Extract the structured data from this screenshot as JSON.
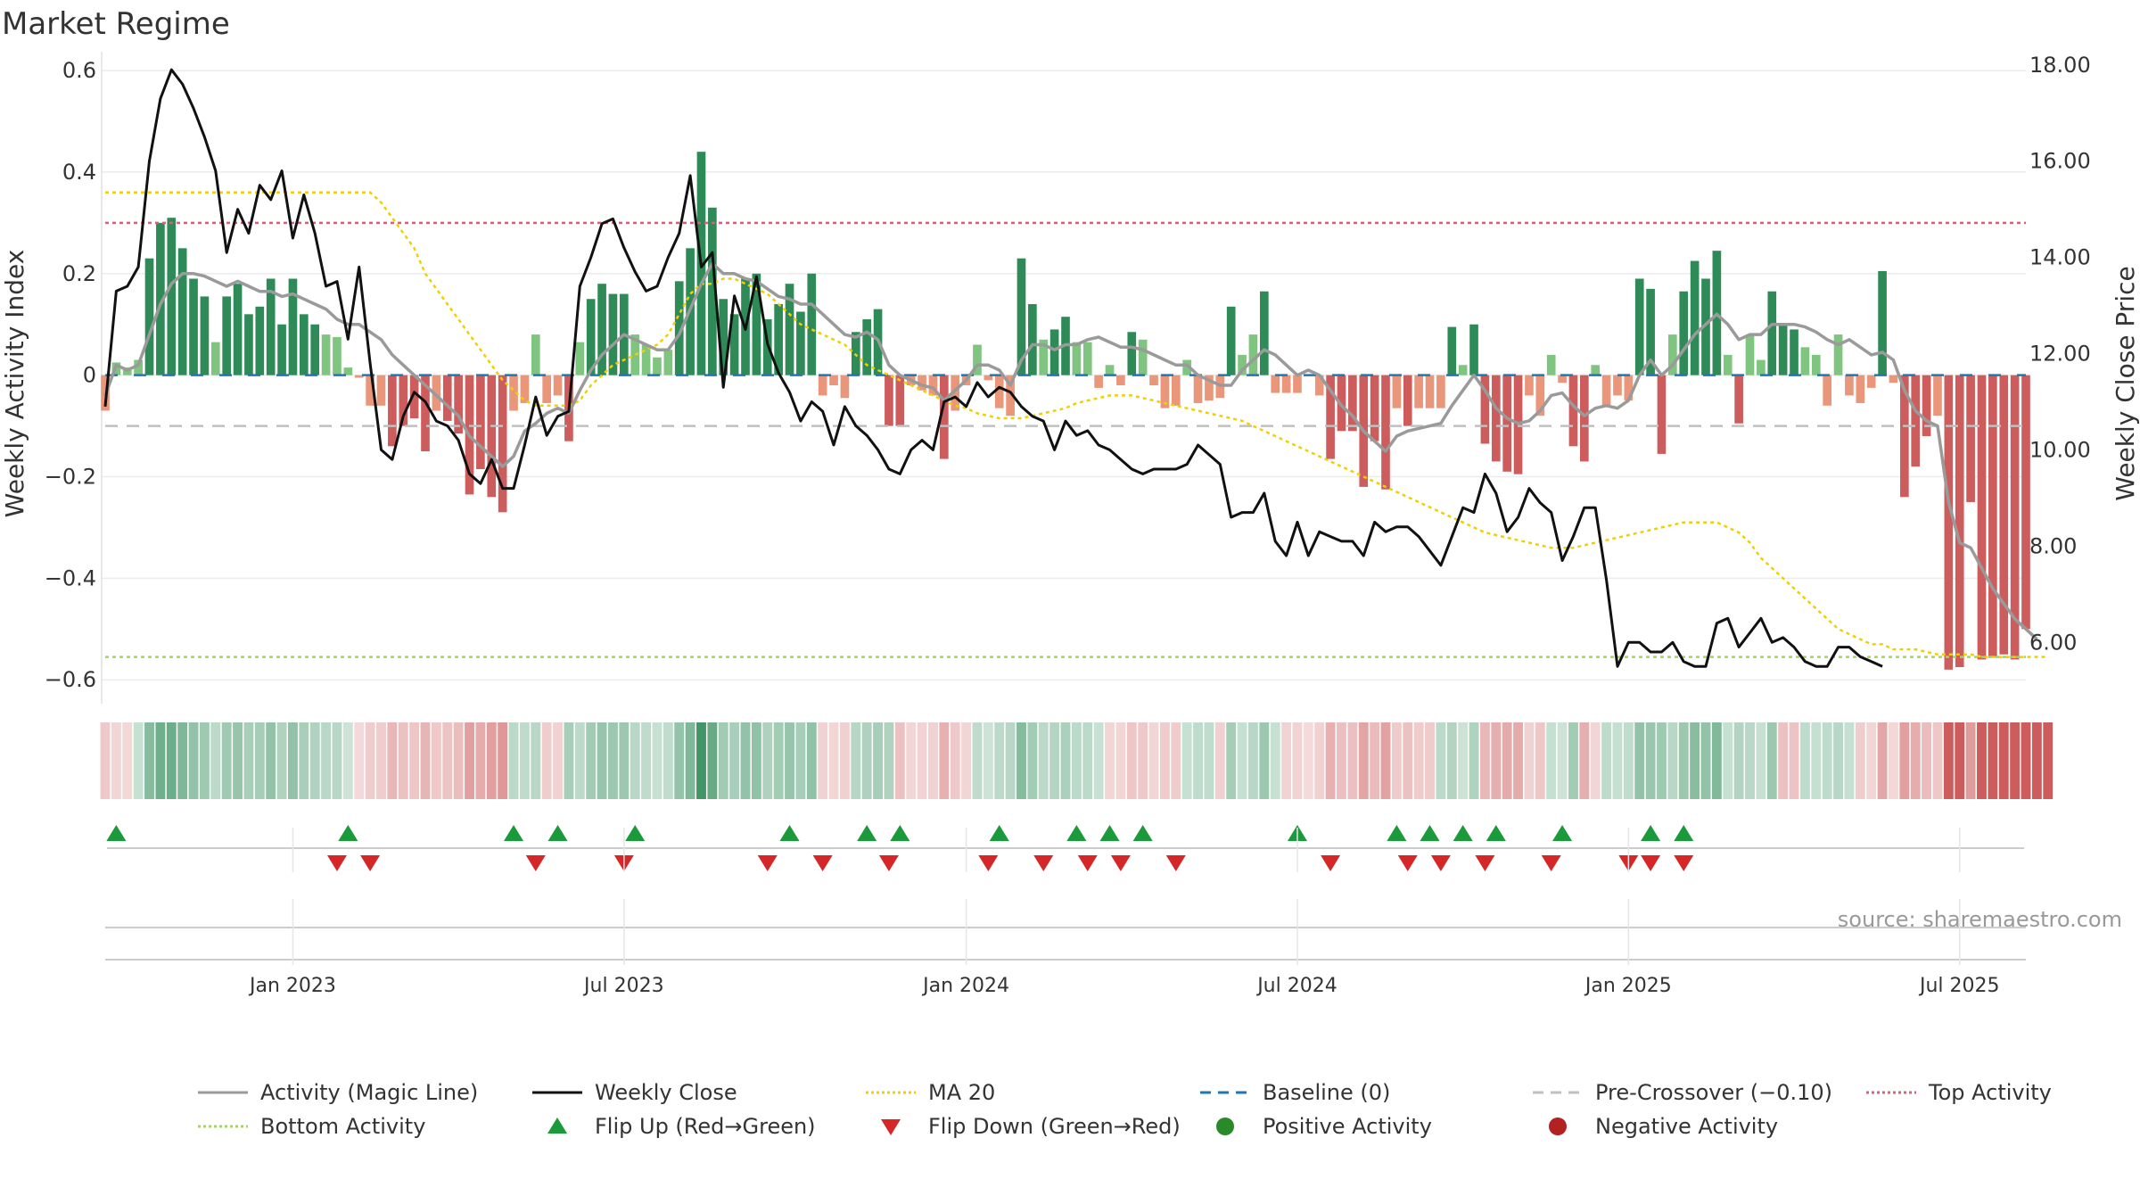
{
  "chart_data": {
    "type": "bar+line",
    "title": "Market Regime",
    "ylabel_left": "Weekly Activity Index",
    "ylabel_right": "Weekly Close Price",
    "ylim_left": [
      -0.64,
      0.63
    ],
    "ylim_right": [
      4.8,
      18.2
    ],
    "left_ticks": [
      0.6,
      0.4,
      0.2,
      0,
      -0.2,
      -0.4,
      -0.6
    ],
    "left_tick_labels": [
      "0.6",
      "0.4",
      "0.2",
      "0",
      "−0.2",
      "−0.4",
      "−0.6"
    ],
    "right_ticks": [
      18,
      16,
      14,
      12,
      10,
      8,
      6
    ],
    "right_tick_labels": [
      "18.00",
      "16.00",
      "14.00",
      "12.00",
      "10.00",
      "8.00",
      "6.00"
    ],
    "x_tick_weeks": [
      17,
      47,
      78,
      108,
      138,
      168
    ],
    "x_tick_labels": [
      "Jan 2023",
      "Jul 2023",
      "Jan 2024",
      "Jul 2024",
      "Jan 2025",
      "Jul 2025"
    ],
    "reference_lines": {
      "top_activity": 0.3,
      "bottom_activity": -0.555,
      "pre_crossover": -0.1,
      "baseline": 0
    },
    "activity": [
      -0.07,
      0.025,
      0.015,
      0.03,
      0.23,
      0.3,
      0.31,
      0.25,
      0.19,
      0.155,
      0.065,
      0.155,
      0.18,
      0.12,
      0.135,
      0.19,
      0.1,
      0.19,
      0.12,
      0.1,
      0.08,
      0.075,
      0.015,
      -0.005,
      -0.06,
      -0.06,
      -0.14,
      -0.1,
      -0.085,
      -0.15,
      -0.07,
      -0.09,
      -0.115,
      -0.235,
      -0.185,
      -0.24,
      -0.27,
      -0.07,
      -0.055,
      0.08,
      -0.055,
      -0.04,
      -0.13,
      0.065,
      0.15,
      0.18,
      0.16,
      0.16,
      0.08,
      0.06,
      0.035,
      0.05,
      0.185,
      0.25,
      0.44,
      0.33,
      0.15,
      0.12,
      0.19,
      0.2,
      0.11,
      0.14,
      0.18,
      0.125,
      0.2,
      -0.04,
      -0.02,
      -0.045,
      0.085,
      0.11,
      0.13,
      -0.1,
      -0.1,
      -0.02,
      -0.03,
      -0.04,
      -0.165,
      -0.07,
      -0.02,
      0.06,
      -0.01,
      -0.065,
      -0.08,
      0.23,
      0.14,
      0.07,
      0.09,
      0.115,
      0.065,
      0.065,
      -0.025,
      0.02,
      -0.02,
      0.085,
      0.07,
      -0.02,
      -0.065,
      -0.06,
      0.03,
      -0.055,
      -0.05,
      -0.045,
      0.135,
      0.04,
      0.08,
      0.165,
      -0.035,
      -0.035,
      -0.035,
      0.0,
      -0.04,
      -0.165,
      -0.11,
      -0.11,
      -0.22,
      -0.13,
      -0.225,
      -0.065,
      -0.1,
      -0.065,
      -0.065,
      -0.065,
      0.095,
      0.02,
      0.1,
      -0.135,
      -0.17,
      -0.19,
      -0.195,
      -0.04,
      -0.08,
      0.04,
      -0.015,
      -0.14,
      -0.17,
      0.02,
      -0.06,
      -0.04,
      -0.05,
      0.19,
      0.17,
      -0.155,
      0.08,
      0.165,
      0.225,
      0.19,
      0.245,
      0.04,
      -0.095,
      0.08,
      0.03,
      0.165,
      0.1,
      0.09,
      0.055,
      0.04,
      -0.06,
      0.08,
      -0.04,
      -0.055,
      -0.025,
      0.205,
      -0.015,
      -0.24,
      -0.18,
      -0.12,
      -0.08,
      -0.58,
      -0.575,
      -0.25,
      -0.56,
      -0.555,
      -0.55,
      -0.56,
      -0.5
    ],
    "magic_line": [
      -0.04,
      0.02,
      0.01,
      0.02,
      0.08,
      0.14,
      0.18,
      0.2,
      0.2,
      0.195,
      0.185,
      0.175,
      0.185,
      0.175,
      0.165,
      0.165,
      0.155,
      0.16,
      0.15,
      0.14,
      0.13,
      0.11,
      0.1,
      0.1,
      0.085,
      0.07,
      0.04,
      0.02,
      0.0,
      -0.02,
      -0.04,
      -0.06,
      -0.08,
      -0.12,
      -0.14,
      -0.16,
      -0.18,
      -0.16,
      -0.11,
      -0.095,
      -0.075,
      -0.065,
      -0.075,
      -0.03,
      0.01,
      0.04,
      0.06,
      0.08,
      0.07,
      0.06,
      0.05,
      0.05,
      0.08,
      0.13,
      0.18,
      0.22,
      0.2,
      0.2,
      0.19,
      0.185,
      0.17,
      0.155,
      0.15,
      0.14,
      0.14,
      0.12,
      0.1,
      0.08,
      0.075,
      0.085,
      0.07,
      0.02,
      0.0,
      -0.01,
      -0.02,
      -0.025,
      -0.05,
      -0.03,
      -0.01,
      0.02,
      0.02,
      0.01,
      -0.02,
      0.03,
      0.06,
      0.06,
      0.05,
      0.06,
      0.06,
      0.07,
      0.075,
      0.065,
      0.055,
      0.055,
      0.05,
      0.04,
      0.03,
      0.02,
      0.02,
      0.0,
      -0.01,
      -0.02,
      -0.02,
      0.01,
      0.03,
      0.05,
      0.04,
      0.02,
      0.0,
      0.01,
      0.0,
      -0.03,
      -0.06,
      -0.08,
      -0.11,
      -0.13,
      -0.15,
      -0.12,
      -0.11,
      -0.105,
      -0.1,
      -0.095,
      -0.06,
      -0.03,
      0.0,
      -0.03,
      -0.065,
      -0.085,
      -0.095,
      -0.09,
      -0.07,
      -0.04,
      -0.035,
      -0.06,
      -0.08,
      -0.065,
      -0.06,
      -0.065,
      -0.05,
      0.0,
      0.03,
      0.0,
      0.02,
      0.05,
      0.08,
      0.1,
      0.12,
      0.1,
      0.07,
      0.08,
      0.08,
      0.1,
      0.1,
      0.1,
      0.095,
      0.085,
      0.07,
      0.06,
      0.07,
      0.055,
      0.04,
      0.045,
      0.03,
      -0.03,
      -0.07,
      -0.09,
      -0.1,
      -0.25,
      -0.33,
      -0.34,
      -0.38,
      -0.42,
      -0.45,
      -0.48,
      -0.5,
      -0.52
    ],
    "ma20_activity": [
      0.36,
      0.36,
      0.36,
      0.36,
      0.36,
      0.36,
      0.36,
      0.36,
      0.36,
      0.36,
      0.36,
      0.36,
      0.36,
      0.36,
      0.36,
      0.36,
      0.36,
      0.36,
      0.36,
      0.36,
      0.36,
      0.36,
      0.36,
      0.36,
      0.36,
      0.34,
      0.31,
      0.28,
      0.25,
      0.2,
      0.17,
      0.14,
      0.11,
      0.08,
      0.05,
      0.02,
      -0.01,
      -0.03,
      -0.05,
      -0.06,
      -0.06,
      -0.06,
      -0.06,
      -0.05,
      -0.02,
      0.0,
      0.02,
      0.03,
      0.04,
      0.05,
      0.06,
      0.08,
      0.12,
      0.16,
      0.18,
      0.18,
      0.19,
      0.19,
      0.18,
      0.17,
      0.16,
      0.14,
      0.12,
      0.1,
      0.09,
      0.08,
      0.07,
      0.06,
      0.04,
      0.02,
      0.01,
      0.0,
      -0.01,
      -0.02,
      -0.03,
      -0.04,
      -0.05,
      -0.06,
      -0.065,
      -0.075,
      -0.08,
      -0.085,
      -0.085,
      -0.085,
      -0.08,
      -0.075,
      -0.07,
      -0.065,
      -0.055,
      -0.05,
      -0.045,
      -0.04,
      -0.04,
      -0.04,
      -0.045,
      -0.05,
      -0.055,
      -0.06,
      -0.065,
      -0.07,
      -0.075,
      -0.08,
      -0.085,
      -0.09,
      -0.1,
      -0.11,
      -0.12,
      -0.13,
      -0.14,
      -0.15,
      -0.16,
      -0.17,
      -0.18,
      -0.19,
      -0.2,
      -0.21,
      -0.22,
      -0.23,
      -0.24,
      -0.25,
      -0.26,
      -0.27,
      -0.28,
      -0.29,
      -0.3,
      -0.31,
      -0.315,
      -0.32,
      -0.325,
      -0.33,
      -0.335,
      -0.34,
      -0.34,
      -0.34,
      -0.335,
      -0.33,
      -0.325,
      -0.32,
      -0.315,
      -0.31,
      -0.305,
      -0.3,
      -0.295,
      -0.29,
      -0.29,
      -0.29,
      -0.29,
      -0.3,
      -0.31,
      -0.33,
      -0.36,
      -0.38,
      -0.4,
      -0.42,
      -0.44,
      -0.46,
      -0.48,
      -0.5,
      -0.51,
      -0.52,
      -0.53,
      -0.53,
      -0.54,
      -0.54,
      -0.54,
      -0.545,
      -0.55,
      -0.55,
      -0.55,
      -0.55,
      -0.555,
      -0.555,
      -0.555,
      -0.555,
      -0.555,
      -0.555,
      -0.555
    ],
    "weekly_close": [
      10.9,
      13.3,
      13.4,
      13.8,
      16.0,
      17.3,
      17.9,
      17.6,
      17.1,
      16.5,
      15.8,
      14.1,
      15.0,
      14.5,
      15.5,
      15.2,
      15.8,
      14.4,
      15.3,
      14.5,
      13.4,
      13.5,
      12.3,
      13.8,
      11.8,
      10.0,
      9.8,
      10.7,
      11.2,
      11.0,
      10.6,
      10.5,
      10.2,
      9.5,
      9.3,
      9.8,
      9.2,
      9.2,
      10.1,
      11.1,
      10.3,
      10.7,
      10.8,
      13.4,
      14.0,
      14.7,
      14.8,
      14.2,
      13.7,
      13.3,
      13.4,
      14.0,
      14.5,
      15.7,
      13.8,
      14.1,
      11.3,
      13.2,
      12.5,
      13.6,
      12.2,
      11.6,
      11.2,
      10.6,
      11.0,
      10.8,
      10.1,
      10.9,
      10.5,
      10.3,
      10.0,
      9.6,
      9.5,
      10.0,
      10.2,
      10.0,
      11.0,
      11.1,
      10.9,
      11.4,
      11.1,
      11.3,
      11.2,
      10.9,
      10.7,
      10.6,
      10.0,
      10.6,
      10.3,
      10.4,
      10.1,
      10.0,
      9.8,
      9.6,
      9.5,
      9.6,
      9.6,
      9.6,
      9.7,
      10.1,
      9.9,
      9.7,
      8.6,
      8.7,
      8.7,
      9.1,
      8.1,
      7.8,
      8.5,
      7.8,
      8.3,
      8.2,
      8.1,
      8.1,
      7.8,
      8.5,
      8.3,
      8.4,
      8.4,
      8.2,
      7.9,
      7.6,
      8.2,
      8.8,
      8.7,
      9.5,
      9.1,
      8.3,
      8.6,
      9.2,
      8.9,
      8.7,
      7.7,
      8.2,
      8.8,
      8.8,
      7.3,
      5.5,
      6.0,
      6.0,
      5.8,
      5.8,
      6.0,
      5.6,
      5.5,
      5.5,
      6.4,
      6.5,
      5.9,
      6.2,
      6.5,
      6.0,
      6.1,
      5.9,
      5.6,
      5.5,
      5.5,
      5.9,
      5.9,
      5.7,
      5.6,
      5.5
    ],
    "flip_up_weeks": [
      1,
      22,
      37,
      41,
      48,
      62,
      69,
      72,
      81,
      88,
      91,
      94,
      108,
      117,
      120,
      123,
      126,
      132,
      140,
      143
    ],
    "flip_down_weeks": [
      21,
      24,
      39,
      47,
      60,
      65,
      71,
      80,
      85,
      89,
      92,
      97,
      111,
      118,
      121,
      125,
      131,
      138,
      140,
      143
    ],
    "regime_strip": [
      -1,
      -1,
      -1,
      1,
      1,
      1,
      1,
      1,
      1,
      1,
      1,
      1,
      1,
      1,
      1,
      1,
      1,
      1,
      1,
      1,
      1,
      1,
      1,
      -1,
      -1,
      -1,
      -1,
      -1,
      -1,
      -1,
      -1,
      -1,
      -1,
      -1,
      -1,
      -1,
      -1,
      1,
      1,
      1,
      -1,
      -1,
      1,
      1,
      1,
      1,
      1,
      1,
      1,
      1,
      1,
      1,
      1,
      1,
      1,
      1,
      1,
      1,
      1,
      1,
      1,
      1,
      1,
      1,
      1,
      -1,
      -1,
      -1,
      1,
      1,
      1,
      1,
      -1,
      -1,
      -1,
      -1,
      -1,
      -1,
      -1,
      1,
      1,
      1,
      1,
      1,
      1,
      1,
      1,
      1,
      1,
      1,
      1,
      -1,
      -1,
      -1,
      -1,
      -1,
      -1,
      -1,
      1,
      1,
      1,
      -1,
      1,
      1,
      1,
      1,
      1,
      -1,
      -1,
      -1,
      -1,
      -1,
      -1,
      -1,
      -1,
      -1,
      -1,
      -1,
      -1,
      -1,
      -1,
      1,
      1,
      1,
      1,
      -1,
      -1,
      -1,
      -1,
      -1,
      -1,
      1,
      1,
      1,
      -1,
      -1,
      1,
      1,
      1,
      1,
      1,
      1,
      1,
      1,
      1,
      1,
      1,
      1,
      1,
      1,
      1,
      1,
      -1,
      -1,
      1,
      1,
      1,
      1,
      1,
      -1,
      -1,
      -1,
      -1,
      -1,
      -1,
      -1,
      -1,
      -1,
      -1,
      -1,
      -1,
      -1,
      -1,
      -1,
      -1,
      -1,
      -1
    ],
    "source_note": "source: sharemaestro.com",
    "colors": {
      "pos_strong": "#2e8b57",
      "pos_light": "#7fc47f",
      "neg_strong": "#cd5c5c",
      "neg_light": "#e9967a",
      "magic": "#9a9a9a",
      "close": "#111111",
      "ma20": "#f0d000",
      "baseline": "#1f77b4",
      "precross": "#c0c0c0",
      "top": "#d9607a",
      "bottom": "#a8d070",
      "flip_up": "#1a9a3a",
      "flip_down": "#d62728",
      "pos_dot": "#2a8a2a",
      "neg_dot": "#b22222"
    },
    "legend": [
      {
        "label": "Activity (Magic Line)",
        "kind": "line",
        "color": "#9a9a9a",
        "dash": ""
      },
      {
        "label": "Weekly Close",
        "kind": "line",
        "color": "#111111",
        "dash": ""
      },
      {
        "label": "MA 20",
        "kind": "line",
        "color": "#f0d000",
        "dash": "3,3"
      },
      {
        "label": "Baseline (0)",
        "kind": "line",
        "color": "#1f77b4",
        "dash": "12,8"
      },
      {
        "label": "Pre-Crossover (−0.10)",
        "kind": "line",
        "color": "#c0c0c0",
        "dash": "12,8"
      },
      {
        "label": "Top Activity",
        "kind": "line",
        "color": "#d9607a",
        "dash": "3,3"
      },
      {
        "label": "Bottom Activity",
        "kind": "line",
        "color": "#a8d070",
        "dash": "3,3"
      },
      {
        "label": "Flip Up (Red→Green)",
        "kind": "tri-up",
        "color": "#1a9a3a",
        "dash": ""
      },
      {
        "label": "Flip Down (Green→Red)",
        "kind": "tri-down",
        "color": "#d62728",
        "dash": ""
      },
      {
        "label": "Positive Activity",
        "kind": "dot",
        "color": "#2a8a2a",
        "dash": ""
      },
      {
        "label": "Negative Activity",
        "kind": "dot",
        "color": "#b22222",
        "dash": ""
      }
    ]
  }
}
